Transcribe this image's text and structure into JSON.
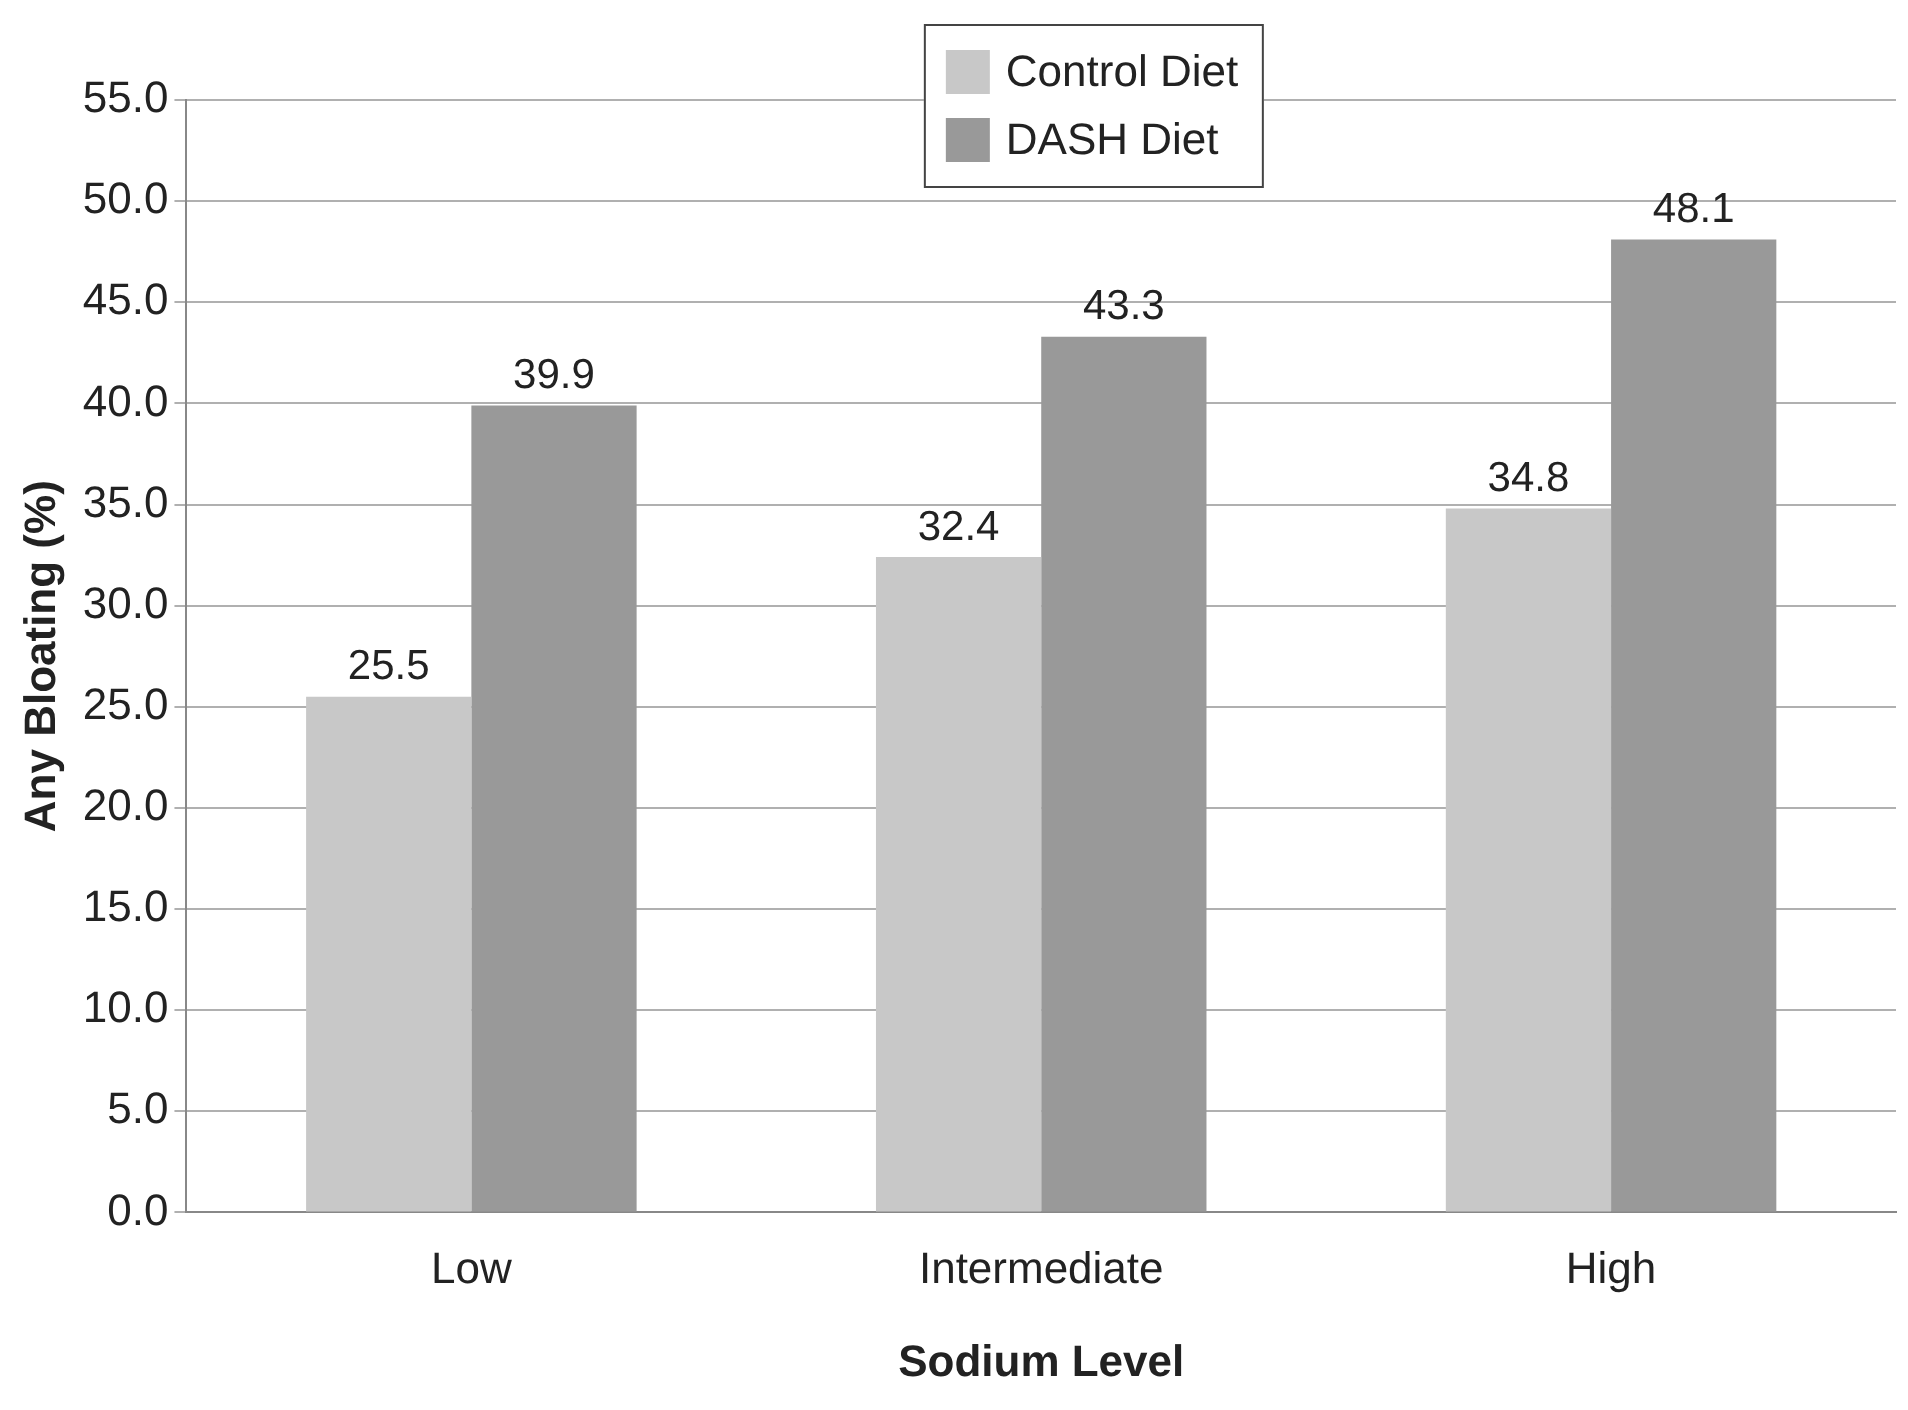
{
  "chart_data": {
    "type": "bar",
    "xlabel": "Sodium Level",
    "ylabel": "Any Bloating (%)",
    "categories": [
      "Low",
      "Intermediate",
      "High"
    ],
    "series": [
      {
        "name": "Control Diet",
        "color": "#c8c8c8",
        "values": [
          25.5,
          32.4,
          34.8
        ]
      },
      {
        "name": "DASH Diet",
        "color": "#999999",
        "values": [
          39.9,
          43.3,
          48.1
        ]
      }
    ],
    "ylim": [
      0,
      55
    ],
    "yticks": [
      {
        "value": 0,
        "label": "0.0"
      },
      {
        "value": 5,
        "label": "5.0"
      },
      {
        "value": 10,
        "label": "10.0"
      },
      {
        "value": 15,
        "label": "15.0"
      },
      {
        "value": 20,
        "label": "20.0"
      },
      {
        "value": 25,
        "label": "25.0"
      },
      {
        "value": 30,
        "label": "30.0"
      },
      {
        "value": 35,
        "label": "35.0"
      },
      {
        "value": 40,
        "label": "40.0"
      },
      {
        "value": 45,
        "label": "45.0"
      },
      {
        "value": 50,
        "label": "50.0"
      },
      {
        "value": 55,
        "label": "55.0"
      }
    ],
    "grid": "y",
    "legend": "top",
    "data_labels": true
  }
}
